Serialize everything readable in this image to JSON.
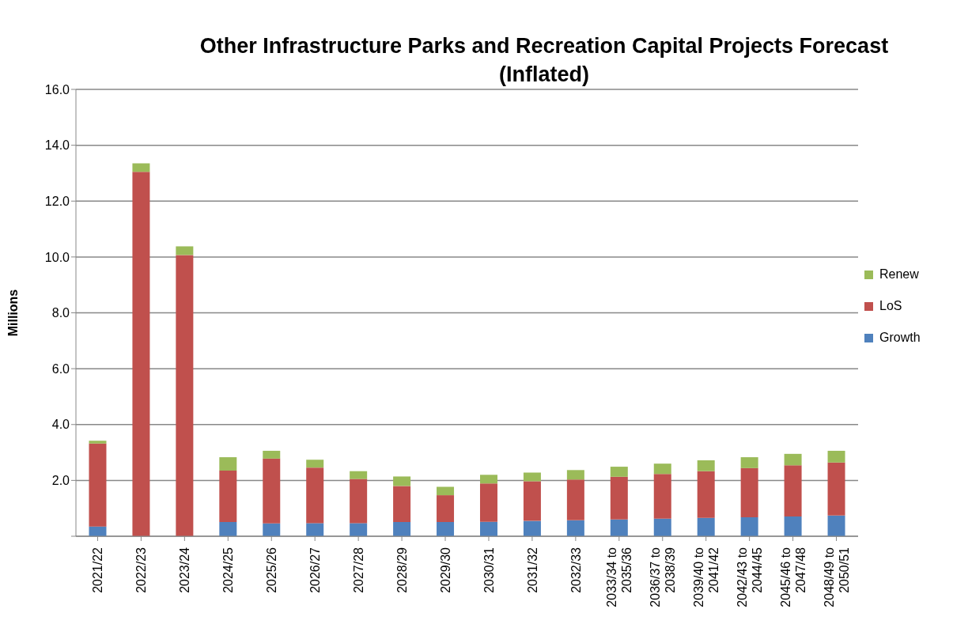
{
  "chart_data": {
    "type": "bar",
    "title": "Other Infrastructure Parks and Recreation Capital Projects Forecast (Inflated)",
    "ylabel": "Millions",
    "categories": [
      "2021/22",
      "2022/23",
      "2023/24",
      "2024/25",
      "2025/26",
      "2026/27",
      "2027/28",
      "2028/29",
      "2029/30",
      "2030/31",
      "2031/32",
      "2032/33",
      "2033/34 to 2035/36",
      "2036/37 to 2038/39",
      "2039/40 to 2041/42",
      "2042/43 to 2044/45",
      "2045/46 to 2047/48",
      "2048/49 to 2050/51"
    ],
    "series": [
      {
        "name": "Growth",
        "color": "#4f81bd",
        "values": [
          0.35,
          0,
          0,
          0.51,
          0.46,
          0.47,
          0.47,
          0.51,
          0.51,
          0.52,
          0.55,
          0.57,
          0.6,
          0.63,
          0.66,
          0.68,
          0.71,
          0.74
        ]
      },
      {
        "name": "LoS",
        "color": "#c0504d",
        "values": [
          2.97,
          13.05,
          10.07,
          1.84,
          2.32,
          1.99,
          1.58,
          1.29,
          0.96,
          1.37,
          1.42,
          1.46,
          1.53,
          1.6,
          1.67,
          1.76,
          1.83,
          1.9
        ]
      },
      {
        "name": "Renew",
        "color": "#9bbb59",
        "values": [
          0.1,
          0.3,
          0.31,
          0.48,
          0.28,
          0.28,
          0.28,
          0.34,
          0.3,
          0.31,
          0.31,
          0.34,
          0.36,
          0.37,
          0.39,
          0.39,
          0.41,
          0.42
        ]
      }
    ],
    "stacked": true,
    "ylim": [
      0,
      16
    ],
    "yticks": [
      {
        "value": 0,
        "label": null
      },
      {
        "value": 2,
        "label": "2.0"
      },
      {
        "value": 4,
        "label": "4.0"
      },
      {
        "value": 6,
        "label": "6.0"
      },
      {
        "value": 8,
        "label": "8.0"
      },
      {
        "value": 10,
        "label": "10.0"
      },
      {
        "value": 12,
        "label": "12.0"
      },
      {
        "value": 14,
        "label": "14.0"
      },
      {
        "value": 16,
        "label": "16.0"
      }
    ],
    "grid": "y",
    "legend": "right"
  }
}
